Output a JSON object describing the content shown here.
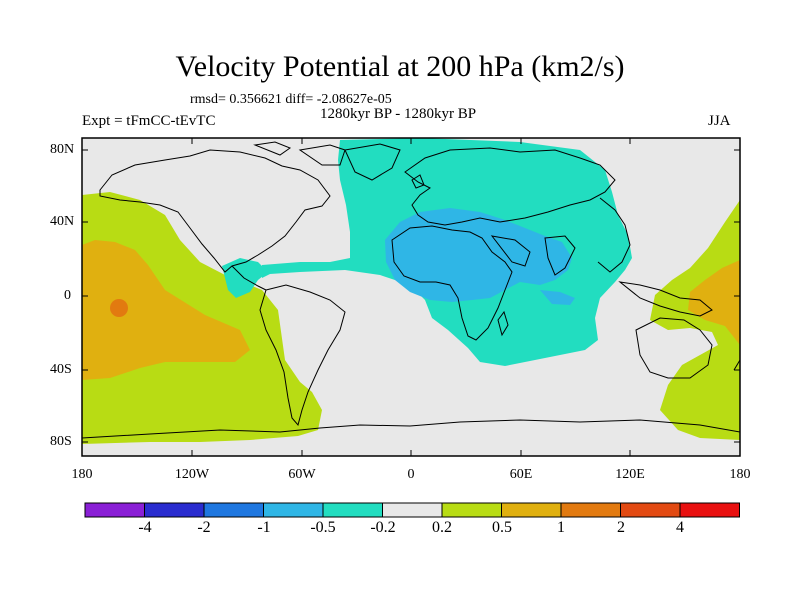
{
  "title": "Velocity Potential at 200 hPa (km2/s)",
  "stats": "rmsd= 0.356621 diff= -2.08627e-05",
  "experiment": "Expt = tFmCC-tEvTC",
  "period": "1280kyr BP - 1280kyr BP",
  "season": "JJA",
  "y_ticks": [
    "80N",
    "40N",
    "0",
    "40S",
    "80S"
  ],
  "x_ticks": [
    "180",
    "120W",
    "60W",
    "0",
    "60E",
    "120E",
    "180"
  ],
  "colorbar": {
    "labels": [
      "-4",
      "-2",
      "-1",
      "-0.5",
      "-0.2",
      "0.2",
      "0.5",
      "1",
      "2",
      "4"
    ],
    "colors": [
      "#8a1fd6",
      "#2a2ccf",
      "#1f77e0",
      "#2fb6e6",
      "#22ddc0",
      "#e8e8e8",
      "#b8dc14",
      "#e0b010",
      "#e27a10",
      "#e24a12",
      "#e81010"
    ]
  }
}
